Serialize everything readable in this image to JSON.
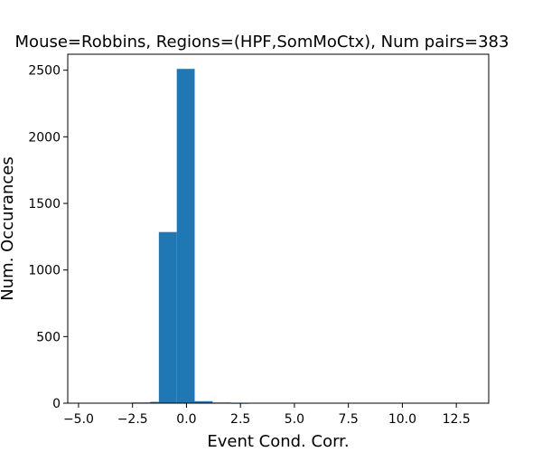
{
  "chart_data": {
    "type": "bar",
    "title": "Mouse=Robbins, Regions=(HPF,SomMoCtx), Num pairs=383",
    "xlabel": "Event Cond. Corr.",
    "ylabel": "Num. Occurances",
    "xlim": [
      -5.5,
      14.0
    ],
    "ylim": [
      0,
      2620
    ],
    "x_ticks": [
      {
        "value": -5.0,
        "label": "−5.0"
      },
      {
        "value": -2.5,
        "label": "−2.5"
      },
      {
        "value": 0.0,
        "label": "0.0"
      },
      {
        "value": 2.5,
        "label": "2.5"
      },
      {
        "value": 5.0,
        "label": "5.0"
      },
      {
        "value": 7.5,
        "label": "7.5"
      },
      {
        "value": 10.0,
        "label": "10.0"
      },
      {
        "value": 12.5,
        "label": "12.5"
      }
    ],
    "y_ticks": [
      {
        "value": 0,
        "label": "0"
      },
      {
        "value": 500,
        "label": "500"
      },
      {
        "value": 1000,
        "label": "1000"
      },
      {
        "value": 1500,
        "label": "1500"
      },
      {
        "value": 2000,
        "label": "2000"
      },
      {
        "value": 2500,
        "label": "2500"
      }
    ],
    "bar_color": "#1f77b4",
    "bins": [
      {
        "x0": -5.0,
        "x1": -4.17,
        "count": 0
      },
      {
        "x0": -4.17,
        "x1": -3.34,
        "count": 0
      },
      {
        "x0": -3.34,
        "x1": -2.51,
        "count": 2
      },
      {
        "x0": -2.51,
        "x1": -1.68,
        "count": 5
      },
      {
        "x0": -1.68,
        "x1": -1.28,
        "count": 10
      },
      {
        "x0": -1.28,
        "x1": -0.45,
        "count": 1285
      },
      {
        "x0": -0.45,
        "x1": 0.38,
        "count": 2510
      },
      {
        "x0": 0.38,
        "x1": 1.21,
        "count": 15
      },
      {
        "x0": 1.21,
        "x1": 2.04,
        "count": 5
      },
      {
        "x0": 2.04,
        "x1": 2.87,
        "count": 1
      },
      {
        "x0": 2.87,
        "x1": 13.0,
        "count": 0
      }
    ]
  }
}
